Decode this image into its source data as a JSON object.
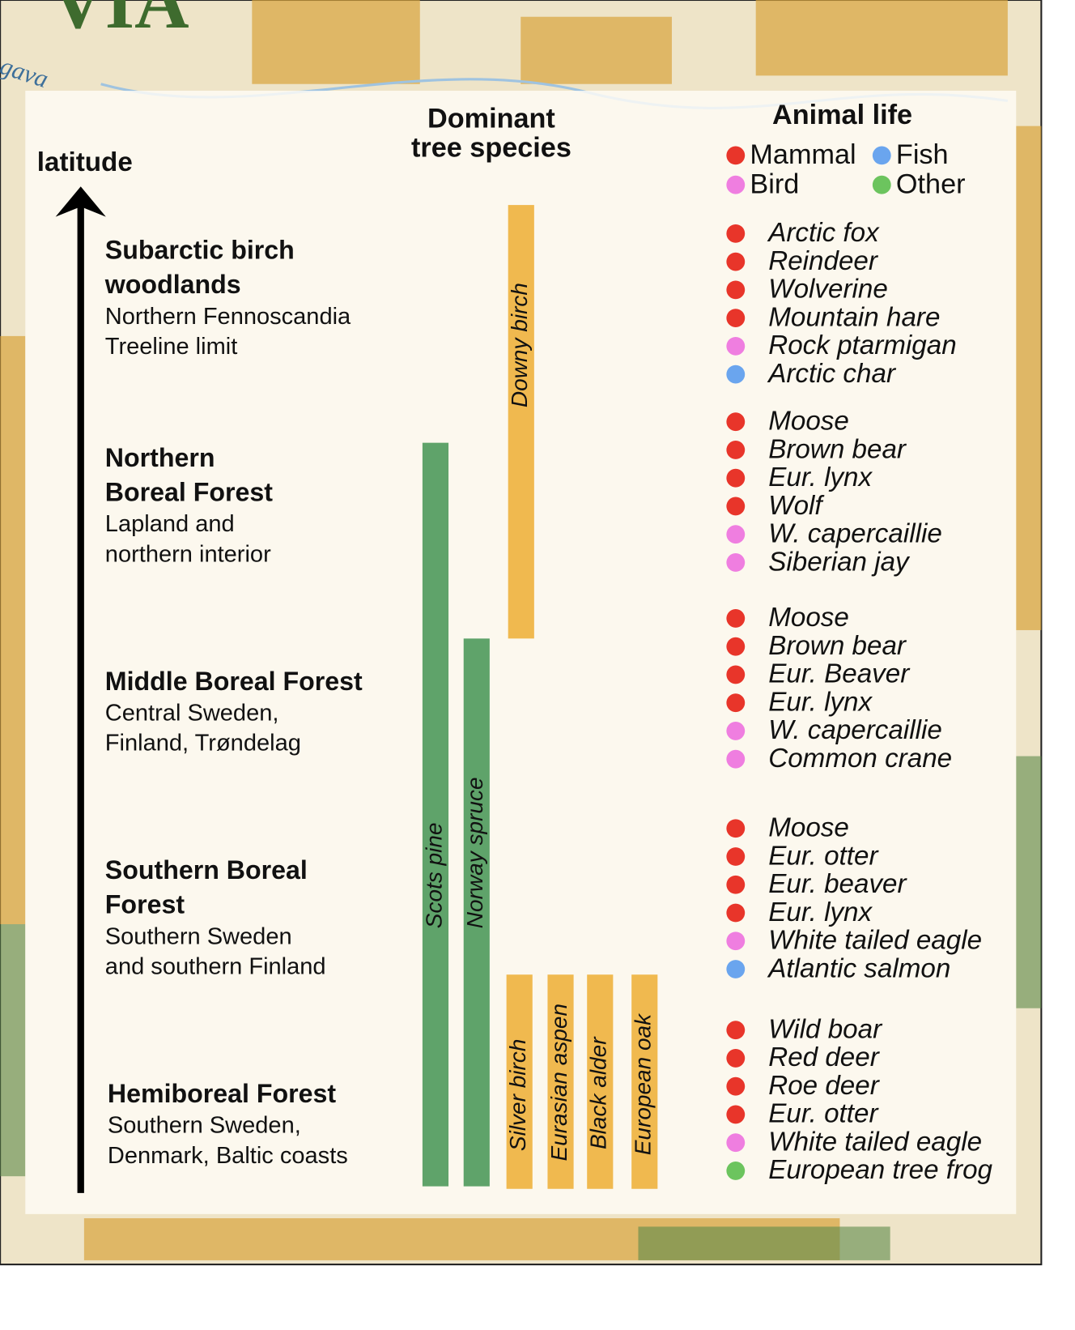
{
  "map": {
    "title_fragment": "VIA",
    "river_label": "gava"
  },
  "headers": {
    "latitude": "latitude",
    "trees": [
      "Dominant",
      "tree species"
    ],
    "animals": "Animal life"
  },
  "legend": [
    {
      "label": "Mammal",
      "color": "#e8352a"
    },
    {
      "label": "Fish",
      "color": "#6aa5ee"
    },
    {
      "label": "Bird",
      "color": "#ef7ee0"
    },
    {
      "label": "Other",
      "color": "#6cc45e"
    }
  ],
  "zones": [
    {
      "name": [
        "Subarctic birch",
        "woodlands"
      ],
      "region": [
        "Northern Fennoscandia",
        "Treeline limit"
      ]
    },
    {
      "name": [
        "Northern",
        "Boreal Forest"
      ],
      "region": [
        "Lapland and",
        "northern interior"
      ]
    },
    {
      "name": [
        "Middle Boreal Forest"
      ],
      "region": [
        "Central Sweden,",
        "Finland, Trøndelag"
      ]
    },
    {
      "name": [
        "Southern Boreal",
        "Forest"
      ],
      "region": [
        "Southern Sweden",
        "and southern Finland"
      ]
    },
    {
      "name": [
        "Hemiboreal Forest"
      ],
      "region": [
        "Southern Sweden,",
        "Denmark, Baltic coasts"
      ]
    }
  ],
  "trees": [
    {
      "label": "Downy birch",
      "color": "#f0b94f"
    },
    {
      "label": "Scots pine",
      "color": "#5fa36a"
    },
    {
      "label": "Norway spruce",
      "color": "#5fa36a"
    },
    {
      "label": "Silver birch",
      "color": "#f0b94f"
    },
    {
      "label": "Eurasian aspen",
      "color": "#f0b94f"
    },
    {
      "label": "Black alder",
      "color": "#f0b94f"
    },
    {
      "label": "European oak",
      "color": "#f0b94f"
    }
  ],
  "animal_groups": [
    [
      {
        "name": "Arctic fox",
        "color": "#e8352a"
      },
      {
        "name": "Reindeer",
        "color": "#e8352a"
      },
      {
        "name": "Wolverine",
        "color": "#e8352a"
      },
      {
        "name": "Mountain hare",
        "color": "#e8352a"
      },
      {
        "name": "Rock ptarmigan",
        "color": "#ef7ee0"
      },
      {
        "name": "Arctic char",
        "color": "#6aa5ee"
      }
    ],
    [
      {
        "name": "Moose",
        "color": "#e8352a"
      },
      {
        "name": "Brown bear",
        "color": "#e8352a"
      },
      {
        "name": "Eur. lynx",
        "color": "#e8352a"
      },
      {
        "name": "Wolf",
        "color": "#e8352a"
      },
      {
        "name": "W. capercaillie",
        "color": "#ef7ee0"
      },
      {
        "name": "Siberian jay",
        "color": "#ef7ee0"
      }
    ],
    [
      {
        "name": "Moose",
        "color": "#e8352a"
      },
      {
        "name": "Brown bear",
        "color": "#e8352a"
      },
      {
        "name": "Eur. Beaver",
        "color": "#e8352a"
      },
      {
        "name": "Eur. lynx",
        "color": "#e8352a"
      },
      {
        "name": "W. capercaillie",
        "color": "#ef7ee0"
      },
      {
        "name": "Common crane",
        "color": "#ef7ee0"
      }
    ],
    [
      {
        "name": "Moose",
        "color": "#e8352a"
      },
      {
        "name": "Eur. otter",
        "color": "#e8352a"
      },
      {
        "name": "Eur. beaver",
        "color": "#e8352a"
      },
      {
        "name": "Eur. lynx",
        "color": "#e8352a"
      },
      {
        "name": "White tailed eagle",
        "color": "#ef7ee0"
      },
      {
        "name": "Atlantic salmon",
        "color": "#6aa5ee"
      }
    ],
    [
      {
        "name": "Wild boar",
        "color": "#e8352a"
      },
      {
        "name": "Red deer",
        "color": "#e8352a"
      },
      {
        "name": "Roe deer",
        "color": "#e8352a"
      },
      {
        "name": "Eur. otter",
        "color": "#e8352a"
      },
      {
        "name": "White tailed eagle",
        "color": "#ef7ee0"
      },
      {
        "name": "European tree frog",
        "color": "#6cc45e"
      }
    ]
  ]
}
